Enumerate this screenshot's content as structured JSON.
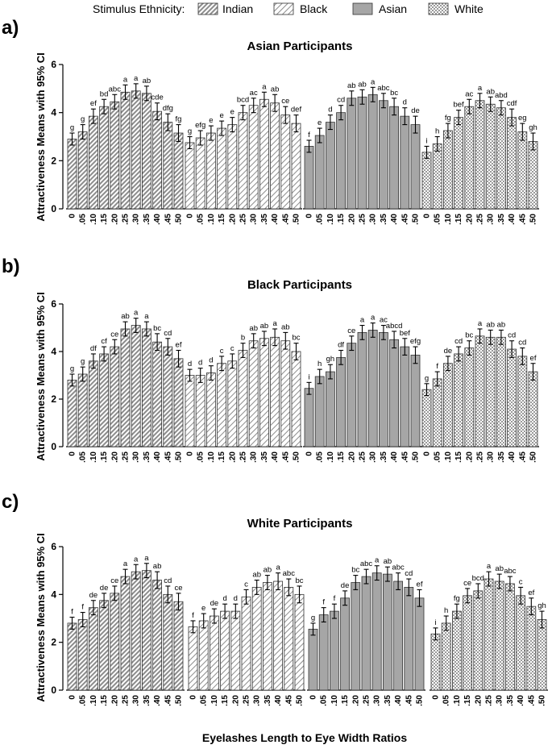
{
  "legend": {
    "title": "Stimulus Ethnicity:",
    "items": [
      {
        "label": "Indian",
        "pattern": "diagonal-dense"
      },
      {
        "label": "Black",
        "pattern": "diagonal-sparse"
      },
      {
        "label": "Asian",
        "pattern": "solid-gray"
      },
      {
        "label": "White",
        "pattern": "checker"
      }
    ]
  },
  "xlabel": "Eyelashes Length to Eye Width Ratios",
  "ylabel": "Attractiveness Means with 95% CI",
  "colors": {
    "bar_gray": "#a6a6a6",
    "bar_stroke": "#333333",
    "axis": "#000000"
  },
  "chart_data": [
    {
      "panel": "a)",
      "title": "Asian Participants",
      "type": "bar",
      "ylim": [
        0,
        6
      ],
      "yticks": [
        "0",
        "2",
        "4",
        "6"
      ],
      "categories": [
        "0",
        ".05",
        ".10",
        ".15",
        ".20",
        ".25",
        ".30",
        ".35",
        ".40",
        ".45",
        ".50"
      ],
      "series": [
        {
          "name": "Indian",
          "values": [
            2.9,
            3.2,
            3.85,
            4.25,
            4.45,
            4.85,
            4.9,
            4.8,
            4.05,
            3.6,
            3.15
          ],
          "ci": [
            0.25,
            0.3,
            0.3,
            0.3,
            0.3,
            0.3,
            0.3,
            0.3,
            0.35,
            0.35,
            0.35
          ],
          "letters": [
            "g",
            "g",
            "ef",
            "bd",
            "abc",
            "a",
            "a",
            "ab",
            "cde",
            "dfg",
            "fg"
          ]
        },
        {
          "name": "Black",
          "values": [
            2.75,
            2.95,
            3.15,
            3.35,
            3.5,
            4.0,
            4.3,
            4.55,
            4.4,
            3.9,
            3.55
          ],
          "ci": [
            0.25,
            0.3,
            0.3,
            0.3,
            0.3,
            0.3,
            0.3,
            0.3,
            0.35,
            0.35,
            0.35
          ],
          "letters": [
            "g",
            "efg",
            "e",
            "e",
            "e",
            "bcd",
            "ac",
            "a",
            "ab",
            "ce",
            "def"
          ]
        },
        {
          "name": "Asian",
          "values": [
            2.6,
            3.05,
            3.6,
            4.0,
            4.6,
            4.65,
            4.75,
            4.5,
            4.25,
            3.85,
            3.5
          ],
          "ci": [
            0.25,
            0.3,
            0.3,
            0.3,
            0.3,
            0.3,
            0.3,
            0.3,
            0.35,
            0.35,
            0.35
          ],
          "letters": [
            "f",
            "e",
            "d",
            "cd",
            "ab",
            "ab",
            "a",
            "abc",
            "bc",
            "d",
            "de"
          ]
        },
        {
          "name": "White",
          "values": [
            2.35,
            2.7,
            3.25,
            3.8,
            4.25,
            4.5,
            4.35,
            4.2,
            3.8,
            3.2,
            2.8
          ],
          "ci": [
            0.25,
            0.3,
            0.3,
            0.3,
            0.3,
            0.3,
            0.3,
            0.3,
            0.35,
            0.35,
            0.35
          ],
          "letters": [
            "i",
            "h",
            "fg",
            "bef",
            "ac",
            "a",
            "ab",
            "abd",
            "cdf",
            "eg",
            "gh"
          ]
        }
      ]
    },
    {
      "panel": "b)",
      "title": "Black Participants",
      "type": "bar",
      "ylim": [
        0,
        6
      ],
      "yticks": [
        "0",
        "2",
        "4",
        "6"
      ],
      "categories": [
        "0",
        ".05",
        ".10",
        ".15",
        ".20",
        ".25",
        ".30",
        ".35",
        ".40",
        ".45",
        ".50"
      ],
      "series": [
        {
          "name": "Indian",
          "values": [
            2.8,
            3.05,
            3.6,
            3.9,
            4.2,
            4.95,
            5.1,
            4.95,
            4.4,
            4.2,
            3.7
          ],
          "ci": [
            0.25,
            0.3,
            0.3,
            0.3,
            0.3,
            0.3,
            0.3,
            0.3,
            0.35,
            0.35,
            0.35
          ],
          "letters": [
            "g",
            "g",
            "df",
            "cf",
            "ce",
            "ab",
            "a",
            "a",
            "bc",
            "cd",
            "ef"
          ]
        },
        {
          "name": "Black",
          "values": [
            3.0,
            3.0,
            3.1,
            3.5,
            3.6,
            4.05,
            4.45,
            4.55,
            4.6,
            4.45,
            4.0
          ],
          "ci": [
            0.25,
            0.3,
            0.3,
            0.3,
            0.3,
            0.3,
            0.3,
            0.3,
            0.35,
            0.35,
            0.35
          ],
          "letters": [
            "d",
            "d",
            "d",
            "c",
            "c",
            "b",
            "ab",
            "ab",
            "a",
            "ab",
            "bc"
          ]
        },
        {
          "name": "Asian",
          "values": [
            2.45,
            2.95,
            3.15,
            3.75,
            4.35,
            4.8,
            4.9,
            4.8,
            4.5,
            4.2,
            3.85
          ],
          "ci": [
            0.25,
            0.3,
            0.3,
            0.3,
            0.3,
            0.3,
            0.3,
            0.3,
            0.35,
            0.35,
            0.35
          ],
          "letters": [
            "i",
            "h",
            "gh",
            "df",
            "ce",
            "a",
            "a",
            "ac",
            "abcd",
            "bef",
            "efg"
          ]
        },
        {
          "name": "White",
          "values": [
            2.4,
            2.85,
            3.5,
            3.9,
            4.15,
            4.65,
            4.6,
            4.6,
            4.1,
            3.8,
            3.15
          ],
          "ci": [
            0.25,
            0.3,
            0.3,
            0.3,
            0.3,
            0.3,
            0.3,
            0.3,
            0.35,
            0.35,
            0.35
          ],
          "letters": [
            "g",
            "f",
            "de",
            "cd",
            "bc",
            "a",
            "ab",
            "ab",
            "cd",
            "cd",
            "ef"
          ]
        }
      ]
    },
    {
      "panel": "c)",
      "title": "White Participants",
      "type": "bar",
      "ylim": [
        0,
        6
      ],
      "yticks": [
        "0",
        "2",
        "4",
        "6"
      ],
      "categories": [
        "0",
        ".05",
        ".10",
        ".15",
        ".20",
        ".25",
        ".30",
        ".35",
        ".40",
        ".45",
        ".50"
      ],
      "series": [
        {
          "name": "Indian",
          "values": [
            2.8,
            2.95,
            3.45,
            3.75,
            4.05,
            4.75,
            4.95,
            5.0,
            4.6,
            4.0,
            3.7
          ],
          "ci": [
            0.25,
            0.3,
            0.3,
            0.3,
            0.3,
            0.3,
            0.3,
            0.3,
            0.35,
            0.35,
            0.35
          ],
          "letters": [
            "f",
            "f",
            "de",
            "de",
            "ce",
            "a",
            "a",
            "a",
            "ab",
            "cd",
            "ce"
          ]
        },
        {
          "name": "Black",
          "values": [
            2.65,
            2.9,
            3.1,
            3.3,
            3.3,
            3.9,
            4.3,
            4.5,
            4.55,
            4.3,
            4.0
          ],
          "ci": [
            0.25,
            0.3,
            0.3,
            0.3,
            0.3,
            0.3,
            0.3,
            0.3,
            0.35,
            0.35,
            0.35
          ],
          "letters": [
            "f",
            "e",
            "de",
            "d",
            "d",
            "c",
            "ab",
            "ab",
            "a",
            "abc",
            "bc"
          ]
        },
        {
          "name": "Asian",
          "values": [
            2.55,
            3.15,
            3.3,
            3.85,
            4.5,
            4.75,
            4.9,
            4.85,
            4.55,
            4.3,
            3.85
          ],
          "ci": [
            0.25,
            0.3,
            0.3,
            0.3,
            0.3,
            0.3,
            0.3,
            0.3,
            0.35,
            0.35,
            0.35
          ],
          "letters": [
            "g",
            "f",
            "f",
            "de",
            "bc",
            "abc",
            "a",
            "ab",
            "abc",
            "cd",
            "ef"
          ]
        },
        {
          "name": "White",
          "values": [
            2.35,
            2.8,
            3.3,
            3.95,
            4.15,
            4.65,
            4.55,
            4.45,
            3.95,
            3.5,
            2.95
          ],
          "ci": [
            0.25,
            0.3,
            0.3,
            0.3,
            0.3,
            0.3,
            0.3,
            0.3,
            0.35,
            0.35,
            0.35
          ],
          "letters": [
            "i",
            "h",
            "fg",
            "ce",
            "bcd",
            "a",
            "ab",
            "abc",
            "c",
            "ef",
            "gh"
          ]
        }
      ]
    }
  ]
}
